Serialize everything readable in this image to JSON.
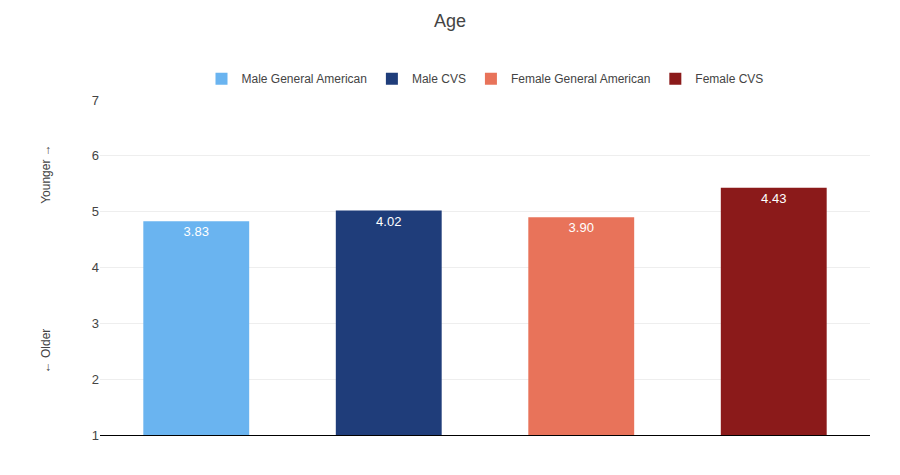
{
  "chart_data": {
    "type": "bar",
    "title": "Age",
    "categories": [
      "Male General American",
      "Male CVS",
      "Female General American",
      "Female CVS"
    ],
    "values": [
      3.83,
      4.02,
      3.9,
      4.43
    ],
    "value_labels": [
      "3.83",
      "4.02",
      "3.90",
      "4.43"
    ],
    "base": 1,
    "colors": [
      "#6ab4f0",
      "#1f3d7a",
      "#e8735a",
      "#8b1a1a"
    ],
    "annotations": [
      "Younger →",
      "← Older"
    ],
    "ylim": [
      1,
      7
    ],
    "yticks": [
      1,
      2,
      3,
      4,
      5,
      6,
      7
    ],
    "grid": true,
    "legend": "top",
    "data_labels": true,
    "tick_labels": "y"
  }
}
